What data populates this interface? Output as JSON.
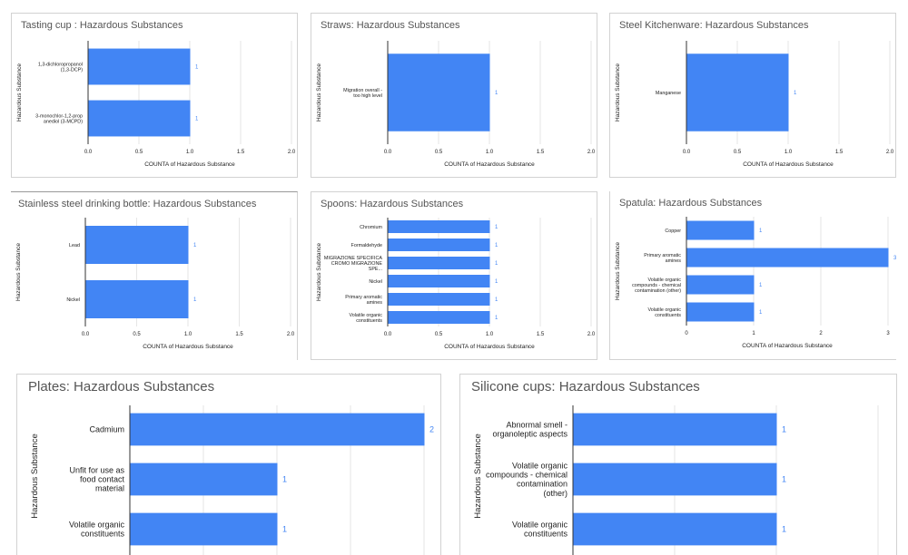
{
  "colors": {
    "bar": "#4285f4",
    "grid": "#e6e6e6",
    "axis": "#333333",
    "title": "#555555",
    "text": "#222222",
    "value_label": "#4285f4"
  },
  "chart_data": [
    {
      "id": "tasting-cup",
      "type": "bar",
      "orientation": "horizontal",
      "title": "Tasting cup : Hazardous Substances",
      "categories": [
        "1,3-dichloropropanol (1,3-DCP)",
        "3-monochlor-1,2-prop anediol (3-MCPD)"
      ],
      "values": [
        1,
        1
      ],
      "value_labels": [
        "1",
        "1"
      ],
      "xlabel": "COUNTA of Hazardous Substance",
      "ylabel": "Hazardous Substance",
      "xlim": [
        0,
        2.0
      ],
      "ticks": [
        "0.0",
        "0.5",
        "1.0",
        "1.5",
        "2.0"
      ],
      "grid": true
    },
    {
      "id": "straws",
      "type": "bar",
      "orientation": "horizontal",
      "title": "Straws: Hazardous Substances",
      "categories": [
        "Migration overall - too high level"
      ],
      "values": [
        1
      ],
      "value_labels": [
        "1"
      ],
      "xlabel": "COUNTA of Hazardous Substance",
      "ylabel": "Hazardous Substance",
      "xlim": [
        0,
        2.0
      ],
      "ticks": [
        "0.0",
        "0.5",
        "1.0",
        "1.5",
        "2.0"
      ],
      "grid": true
    },
    {
      "id": "steel-kitchenware",
      "type": "bar",
      "orientation": "horizontal",
      "title": "Steel Kitchenware: Hazardous Substances",
      "categories": [
        "Manganese"
      ],
      "values": [
        1
      ],
      "value_labels": [
        "1"
      ],
      "xlabel": "COUNTA of Hazardous Substance",
      "ylabel": "Hazardous Substance",
      "xlim": [
        0,
        2.0
      ],
      "ticks": [
        "0.0",
        "0.5",
        "1.0",
        "1.5",
        "2.0"
      ],
      "grid": true
    },
    {
      "id": "stainless-bottle",
      "type": "bar",
      "orientation": "horizontal",
      "title": "Stainless steel drinking bottle: Hazardous Substances",
      "categories": [
        "Lead",
        "Nickel"
      ],
      "values": [
        1,
        1
      ],
      "value_labels": [
        "1",
        "1"
      ],
      "xlabel": "COUNTA of Hazardous Substance",
      "ylabel": "Hazardous Substance",
      "xlim": [
        0,
        2.0
      ],
      "ticks": [
        "0.0",
        "0.5",
        "1.0",
        "1.5",
        "2.0"
      ],
      "grid": true
    },
    {
      "id": "spoons",
      "type": "bar",
      "orientation": "horizontal",
      "title": "Spoons: Hazardous Substances",
      "categories": [
        "Chromium",
        "Formaldehyde",
        "MIGRAZIONE SPECIFICA CROMO MIGRAZIONE SPE...",
        "Nickel",
        "Primary aromatic amines",
        "Volatile organic constituents"
      ],
      "values": [
        1,
        1,
        1,
        1,
        1,
        1
      ],
      "value_labels": [
        "1",
        "1",
        "1",
        "1",
        "1",
        "1"
      ],
      "xlabel": "COUNTA of Hazardous Substance",
      "ylabel": "Hazardous Substance",
      "xlim": [
        0,
        2.0
      ],
      "ticks": [
        "0.0",
        "0.5",
        "1.0",
        "1.5",
        "2.0"
      ],
      "grid": true
    },
    {
      "id": "spatula",
      "type": "bar",
      "orientation": "horizontal",
      "title": "Spatula: Hazardous Substances",
      "categories": [
        "Copper",
        "Primary aromatic amines",
        "Volatile organic compounds - chemical contamination (other)",
        "Volatile organic constituents"
      ],
      "values": [
        1,
        3,
        1,
        1
      ],
      "value_labels": [
        "1",
        "3",
        "1",
        "1"
      ],
      "xlabel": "COUNTA of Hazardous Substance",
      "ylabel": "Hazardous Substance",
      "xlim": [
        0,
        3
      ],
      "ticks": [
        "0",
        "1",
        "2",
        "3"
      ],
      "grid": true
    },
    {
      "id": "plates",
      "type": "bar",
      "orientation": "horizontal",
      "title": "Plates: Hazardous Substances",
      "categories": [
        "Cadmium",
        "Unfit for use as food contact material",
        "Volatile organic constituents"
      ],
      "values": [
        2,
        1,
        1
      ],
      "value_labels": [
        "2",
        "1",
        "1"
      ],
      "xlabel": "",
      "ylabel": "Hazardous Substance",
      "xlim": [
        0,
        2
      ],
      "ticks": [],
      "grid": true
    },
    {
      "id": "silicone-cups",
      "type": "bar",
      "orientation": "horizontal",
      "title": "Silicone cups: Hazardous Substances",
      "categories": [
        "Abnormal smell - organoleptic aspects",
        "Volatile organic compounds - chemical contamination (other)",
        "Volatile organic constituents"
      ],
      "values": [
        1,
        1,
        1
      ],
      "value_labels": [
        "1",
        "1",
        "1"
      ],
      "xlabel": "",
      "ylabel": "Hazardous Substance",
      "xlim": [
        0,
        1.5
      ],
      "ticks": [],
      "grid": true
    }
  ]
}
